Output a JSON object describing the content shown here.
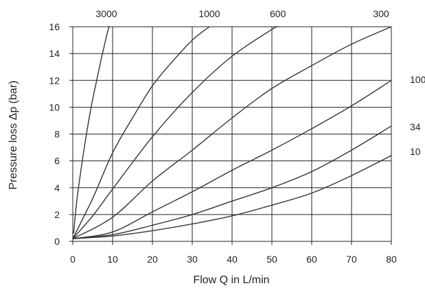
{
  "chart_data": {
    "type": "line",
    "title": "",
    "xlabel": "Flow Q in L/min",
    "ylabel": "Pressure loss Δp  (bar)",
    "xlim": [
      0,
      80
    ],
    "ylim": [
      0,
      16
    ],
    "x_ticks": [
      "0",
      "10",
      "20",
      "30",
      "40",
      "50",
      "60",
      "70",
      "80"
    ],
    "y_ticks": [
      "0",
      "2",
      "4",
      "6",
      "8",
      "10",
      "12",
      "14",
      "16"
    ],
    "grid": true,
    "line_color": "#333333",
    "series": [
      {
        "name": "3000",
        "label_position": "top",
        "points": [
          [
            0.2,
            0.6
          ],
          [
            1,
            3.0
          ],
          [
            2,
            5.2
          ],
          [
            3,
            7.2
          ],
          [
            4,
            9.0
          ],
          [
            5,
            10.6
          ],
          [
            6,
            12.0
          ],
          [
            7,
            13.4
          ],
          [
            8,
            14.7
          ],
          [
            9,
            15.9
          ],
          [
            9.3,
            16.0
          ]
        ]
      },
      {
        "name": "1000",
        "label_position": "top",
        "points": [
          [
            0,
            0.2
          ],
          [
            5,
            3.2
          ],
          [
            10,
            6.6
          ],
          [
            15,
            9.2
          ],
          [
            20,
            11.6
          ],
          [
            25,
            13.4
          ],
          [
            30,
            15.0
          ],
          [
            34.3,
            16.0
          ]
        ]
      },
      {
        "name": "600",
        "label_position": "top",
        "points": [
          [
            0,
            0.2
          ],
          [
            5,
            1.9
          ],
          [
            10,
            3.9
          ],
          [
            20,
            7.8
          ],
          [
            30,
            11.1
          ],
          [
            40,
            13.8
          ],
          [
            50,
            15.8
          ],
          [
            51.5,
            16.0
          ]
        ]
      },
      {
        "name": "300",
        "label_position": "top",
        "points": [
          [
            0,
            0.2
          ],
          [
            10,
            1.8
          ],
          [
            20,
            4.5
          ],
          [
            30,
            6.8
          ],
          [
            40,
            9.2
          ],
          [
            50,
            11.4
          ],
          [
            60,
            13.1
          ],
          [
            70,
            14.7
          ],
          [
            80,
            16.0
          ]
        ]
      },
      {
        "name": "100",
        "label_position": "right",
        "points": [
          [
            0,
            0.2
          ],
          [
            10,
            0.7
          ],
          [
            20,
            2.2
          ],
          [
            30,
            3.7
          ],
          [
            40,
            5.3
          ],
          [
            50,
            6.8
          ],
          [
            60,
            8.4
          ],
          [
            70,
            10.1
          ],
          [
            80,
            12.0
          ]
        ]
      },
      {
        "name": "34",
        "label_position": "right",
        "points": [
          [
            0,
            0.2
          ],
          [
            10,
            0.5
          ],
          [
            20,
            1.2
          ],
          [
            30,
            2.0
          ],
          [
            40,
            3.0
          ],
          [
            50,
            4.0
          ],
          [
            60,
            5.2
          ],
          [
            70,
            6.8
          ],
          [
            80,
            8.6
          ]
        ]
      },
      {
        "name": "10",
        "label_position": "right",
        "points": [
          [
            0,
            0.2
          ],
          [
            10,
            0.4
          ],
          [
            20,
            0.8
          ],
          [
            30,
            1.3
          ],
          [
            40,
            1.9
          ],
          [
            50,
            2.7
          ],
          [
            60,
            3.6
          ],
          [
            70,
            4.9
          ],
          [
            80,
            6.4
          ]
        ]
      }
    ]
  }
}
